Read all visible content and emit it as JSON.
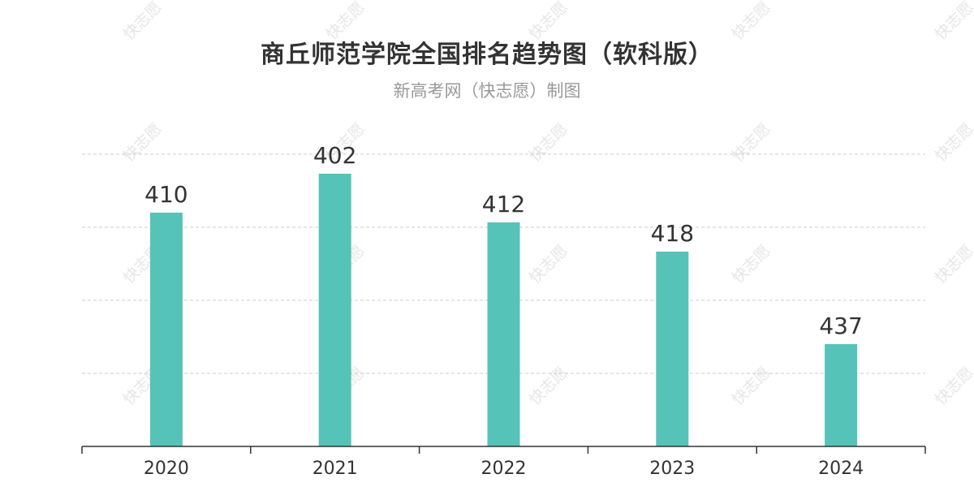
{
  "watermark": "快志愿",
  "chart_data": {
    "type": "bar",
    "title": "商丘师范学院全国排名趋势图（软科版）",
    "subtitle": "新高考网（快志愿）制图",
    "categories": [
      "2020",
      "2021",
      "2022",
      "2023",
      "2024"
    ],
    "values": [
      410,
      402,
      412,
      418,
      437
    ],
    "y_axis_inverted": true,
    "ylim": [
      398,
      458
    ],
    "bar_color": "#56c3b8",
    "grid": true,
    "xlabel": "",
    "ylabel": ""
  }
}
